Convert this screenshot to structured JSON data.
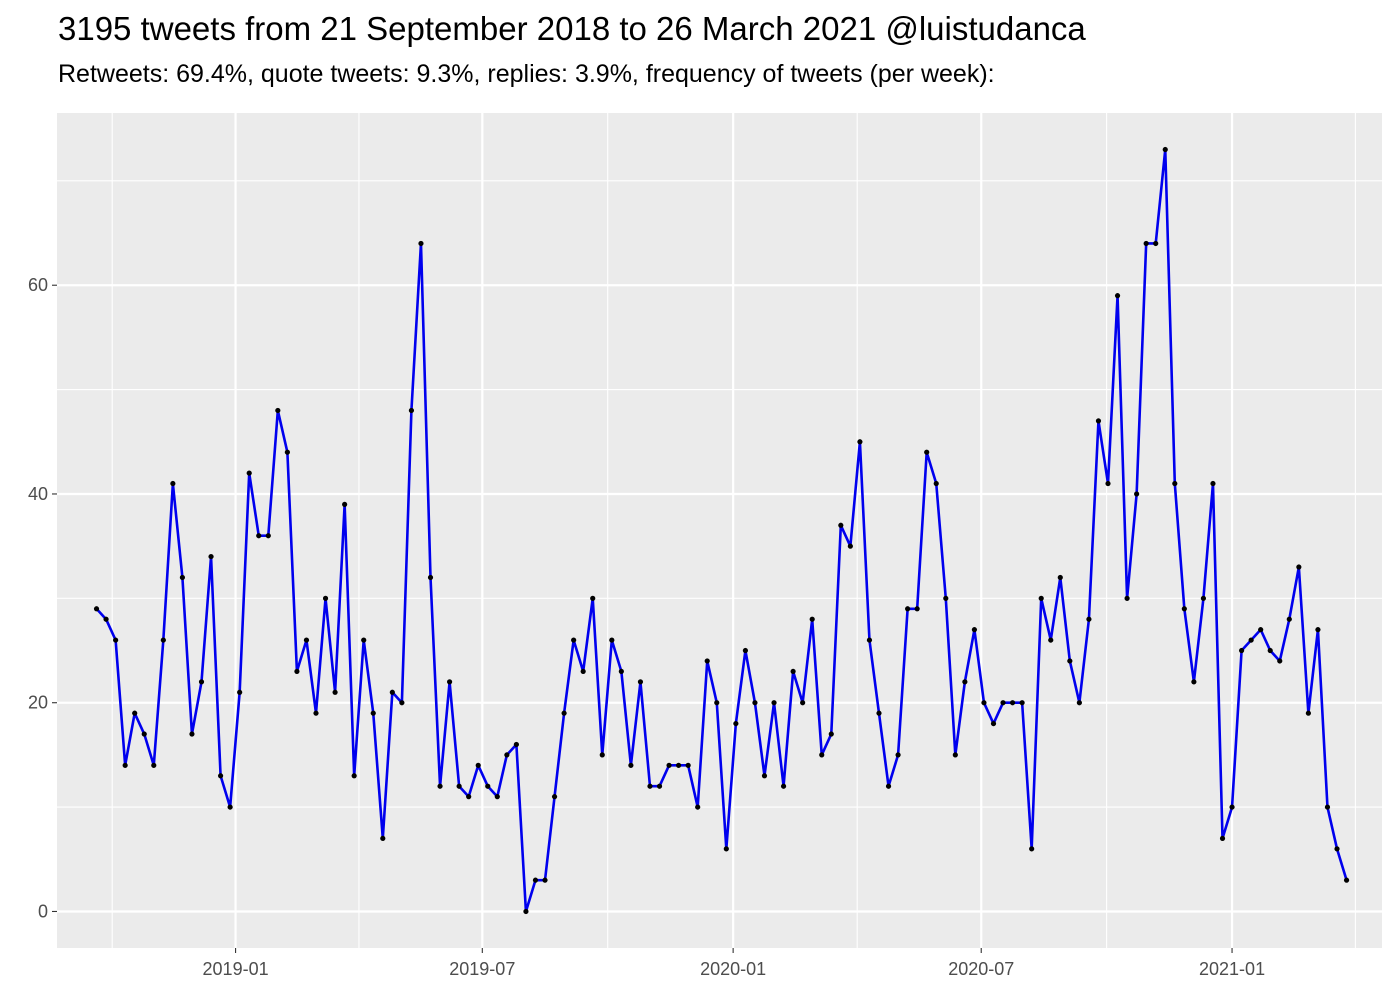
{
  "chart_data": {
    "type": "line",
    "title": "3195 tweets from 21 September 2018 to 26 March 2021 @luistudanca",
    "subtitle": "Retweets: 69.4%, quote tweets: 9.3%, replies: 3.9%, frequency of tweets (per week):",
    "xlabel": "",
    "ylabel": "",
    "ylim": [
      -3.5,
      76.5
    ],
    "xlim": [
      "2018-08-23",
      "2021-04-21"
    ],
    "x_ticks": [
      "2019-01-01",
      "2019-07-01",
      "2020-01-01",
      "2020-07-01",
      "2021-01-01"
    ],
    "x_tick_labels": [
      "2019-01",
      "2019-07",
      "2020-01",
      "2020-07",
      "2021-01"
    ],
    "y_ticks": [
      0,
      20,
      40,
      60
    ],
    "y_tick_labels": [
      "0",
      "20",
      "40",
      "60"
    ],
    "grid": true,
    "legend": "none",
    "line_color": "#0000ee",
    "point_color": "#000000",
    "panel_background": "#ebebeb",
    "series": [
      {
        "x": [
          "2018-09-21",
          "2018-09-28",
          "2018-10-05",
          "2018-10-12",
          "2018-10-19",
          "2018-10-26",
          "2018-11-02",
          "2018-11-09",
          "2018-11-16",
          "2018-11-23",
          "2018-11-30",
          "2018-12-07",
          "2018-12-14",
          "2018-12-21",
          "2018-12-28",
          "2019-01-04",
          "2019-01-11",
          "2019-01-18",
          "2019-01-25",
          "2019-02-01",
          "2019-02-08",
          "2019-02-15",
          "2019-02-22",
          "2019-03-01",
          "2019-03-08",
          "2019-03-15",
          "2019-03-22",
          "2019-03-29",
          "2019-04-05",
          "2019-04-12",
          "2019-04-19",
          "2019-04-26",
          "2019-05-03",
          "2019-05-10",
          "2019-05-17",
          "2019-05-24",
          "2019-05-31",
          "2019-06-07",
          "2019-06-14",
          "2019-06-21",
          "2019-06-28",
          "2019-07-05",
          "2019-07-12",
          "2019-07-19",
          "2019-07-26",
          "2019-08-02",
          "2019-08-09",
          "2019-08-16",
          "2019-08-23",
          "2019-08-30",
          "2019-09-06",
          "2019-09-13",
          "2019-09-20",
          "2019-09-27",
          "2019-10-04",
          "2019-10-11",
          "2019-10-18",
          "2019-10-25",
          "2019-11-01",
          "2019-11-08",
          "2019-11-15",
          "2019-11-22",
          "2019-11-29",
          "2019-12-06",
          "2019-12-13",
          "2019-12-20",
          "2019-12-27",
          "2020-01-03",
          "2020-01-10",
          "2020-01-17",
          "2020-01-24",
          "2020-01-31",
          "2020-02-07",
          "2020-02-14",
          "2020-02-21",
          "2020-02-28",
          "2020-03-06",
          "2020-03-13",
          "2020-03-20",
          "2020-03-27",
          "2020-04-03",
          "2020-04-10",
          "2020-04-17",
          "2020-04-24",
          "2020-05-01",
          "2020-05-08",
          "2020-05-15",
          "2020-05-22",
          "2020-05-29",
          "2020-06-05",
          "2020-06-12",
          "2020-06-19",
          "2020-06-26",
          "2020-07-03",
          "2020-07-10",
          "2020-07-17",
          "2020-07-24",
          "2020-07-31",
          "2020-08-07",
          "2020-08-14",
          "2020-08-21",
          "2020-08-28",
          "2020-09-04",
          "2020-09-11",
          "2020-09-18",
          "2020-09-25",
          "2020-10-02",
          "2020-10-09",
          "2020-10-16",
          "2020-10-23",
          "2020-10-30",
          "2020-11-06",
          "2020-11-13",
          "2020-11-20",
          "2020-11-27",
          "2020-12-04",
          "2020-12-11",
          "2020-12-18",
          "2020-12-25",
          "2021-01-01",
          "2021-01-08",
          "2021-01-15",
          "2021-01-22",
          "2021-01-29",
          "2021-02-05",
          "2021-02-12",
          "2021-02-19",
          "2021-02-26",
          "2021-03-05",
          "2021-03-12",
          "2021-03-19",
          "2021-03-26"
        ],
        "values": [
          29,
          28,
          26,
          14,
          19,
          17,
          14,
          26,
          41,
          32,
          17,
          22,
          34,
          13,
          10,
          21,
          42,
          36,
          36,
          48,
          44,
          23,
          26,
          19,
          30,
          21,
          39,
          13,
          26,
          19,
          7,
          21,
          20,
          48,
          64,
          32,
          12,
          22,
          12,
          11,
          14,
          12,
          11,
          15,
          16,
          0,
          3,
          3,
          11,
          19,
          26,
          23,
          30,
          15,
          26,
          23,
          14,
          22,
          12,
          12,
          14,
          14,
          14,
          10,
          24,
          20,
          6,
          18,
          25,
          20,
          13,
          20,
          12,
          23,
          20,
          28,
          15,
          17,
          37,
          35,
          45,
          26,
          19,
          12,
          15,
          29,
          29,
          44,
          41,
          30,
          15,
          22,
          27,
          20,
          18,
          20,
          20,
          20,
          6,
          30,
          26,
          32,
          24,
          20,
          28,
          47,
          41,
          59,
          30,
          40,
          64,
          64,
          73,
          41,
          29,
          22,
          30,
          41,
          7,
          10,
          25,
          26,
          27,
          25,
          24,
          28,
          33,
          19,
          27,
          10,
          6,
          3
        ]
      }
    ]
  }
}
